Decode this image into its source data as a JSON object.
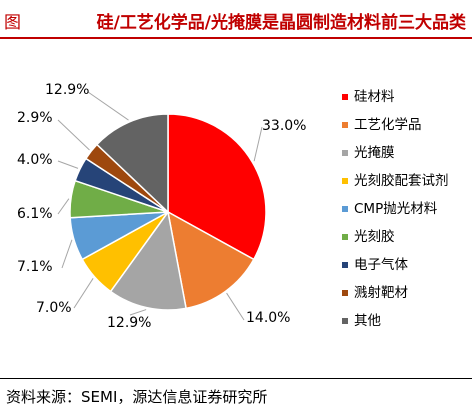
{
  "header": {
    "figure_label": "图",
    "title": "硅/工艺化学品/光掩膜是晶圆制造材料前三大品类",
    "accent_color": "#c00000"
  },
  "chart_data": {
    "type": "pie",
    "title": "",
    "legend_position": "right",
    "slices": [
      {
        "label": "硅材料",
        "value": 33.0,
        "display": "33.0%",
        "color": "#ff0000"
      },
      {
        "label": "工艺化学品",
        "value": 14.0,
        "display": "14.0%",
        "color": "#ed7d31"
      },
      {
        "label": "光掩膜",
        "value": 12.9,
        "display": "12.9%",
        "color": "#a5a5a5"
      },
      {
        "label": "光刻胶配套试剂",
        "value": 7.0,
        "display": "7.0%",
        "color": "#ffc000"
      },
      {
        "label": "CMP抛光材料",
        "value": 7.1,
        "display": "7.1%",
        "color": "#5b9bd5"
      },
      {
        "label": "光刻胶",
        "value": 6.1,
        "display": "6.1%",
        "color": "#70ad47"
      },
      {
        "label": "电子气体",
        "value": 4.0,
        "display": "4.0%",
        "color": "#264478"
      },
      {
        "label": "溅射靶材",
        "value": 2.9,
        "display": "2.9%",
        "color": "#9e480e"
      },
      {
        "label": "其他",
        "value": 12.9,
        "display": "12.9%",
        "color": "#636363"
      }
    ]
  },
  "footer": {
    "source": "资料来源：SEMI，源达信息证券研究所"
  }
}
